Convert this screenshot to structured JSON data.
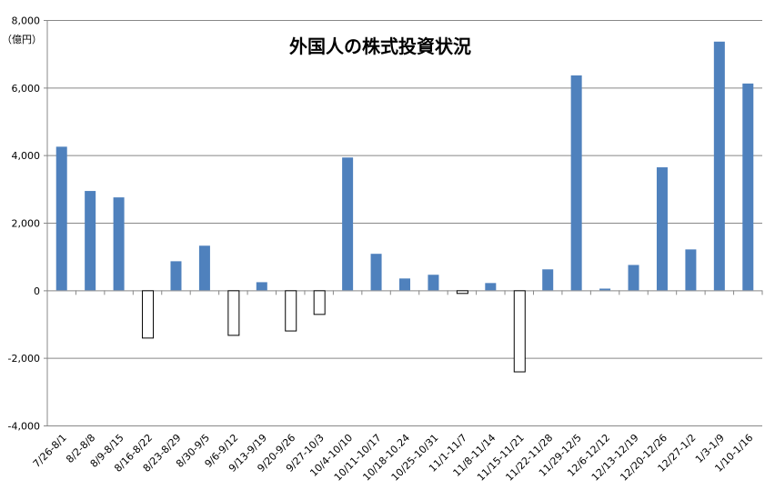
{
  "chart_data": {
    "type": "bar",
    "title": "外国人の株式投資状況",
    "unit_label": "（億円）",
    "xlabel": "",
    "ylabel": "",
    "ylim": [
      -4000,
      8000
    ],
    "yticks": [
      -4000,
      -2000,
      0,
      2000,
      4000,
      6000,
      8000
    ],
    "ytick_labels": [
      "-4,000",
      "-2,000",
      "0",
      "2,000",
      "4,000",
      "6,000",
      "8,000"
    ],
    "grid": true,
    "legend": "none",
    "colors": {
      "positive": "#4f81bd",
      "negative_fill": "#ffffff",
      "negative_stroke": "#000000",
      "grid": "#888888"
    },
    "categories": [
      "7/26-8/1",
      "8/2-8/8",
      "8/9-8/15",
      "8/16-8/22",
      "8/23-8/29",
      "8/30-9/5",
      "9/6-9/12",
      "9/13-9/19",
      "9/20-9/26",
      "9/27-10/3",
      "10/4-10/10",
      "10/11-10/17",
      "10/18-10.24",
      "10/25-10/31",
      "11/1-11/7",
      "11/8-11/14",
      "11/15-11/21",
      "11/22-11/28",
      "11/29-12/5",
      "12/6-12/12",
      "12/13-12/19",
      "12/20-12/26",
      "12/27-1/2",
      "1/3-1/9",
      "1/10-1/16"
    ],
    "values": [
      4250,
      2940,
      2750,
      -1400,
      860,
      1320,
      -1320,
      240,
      -1190,
      -700,
      3930,
      1080,
      350,
      460,
      -80,
      215,
      -2400,
      620,
      6360,
      50,
      750,
      3640,
      1210,
      7360,
      6120
    ]
  }
}
